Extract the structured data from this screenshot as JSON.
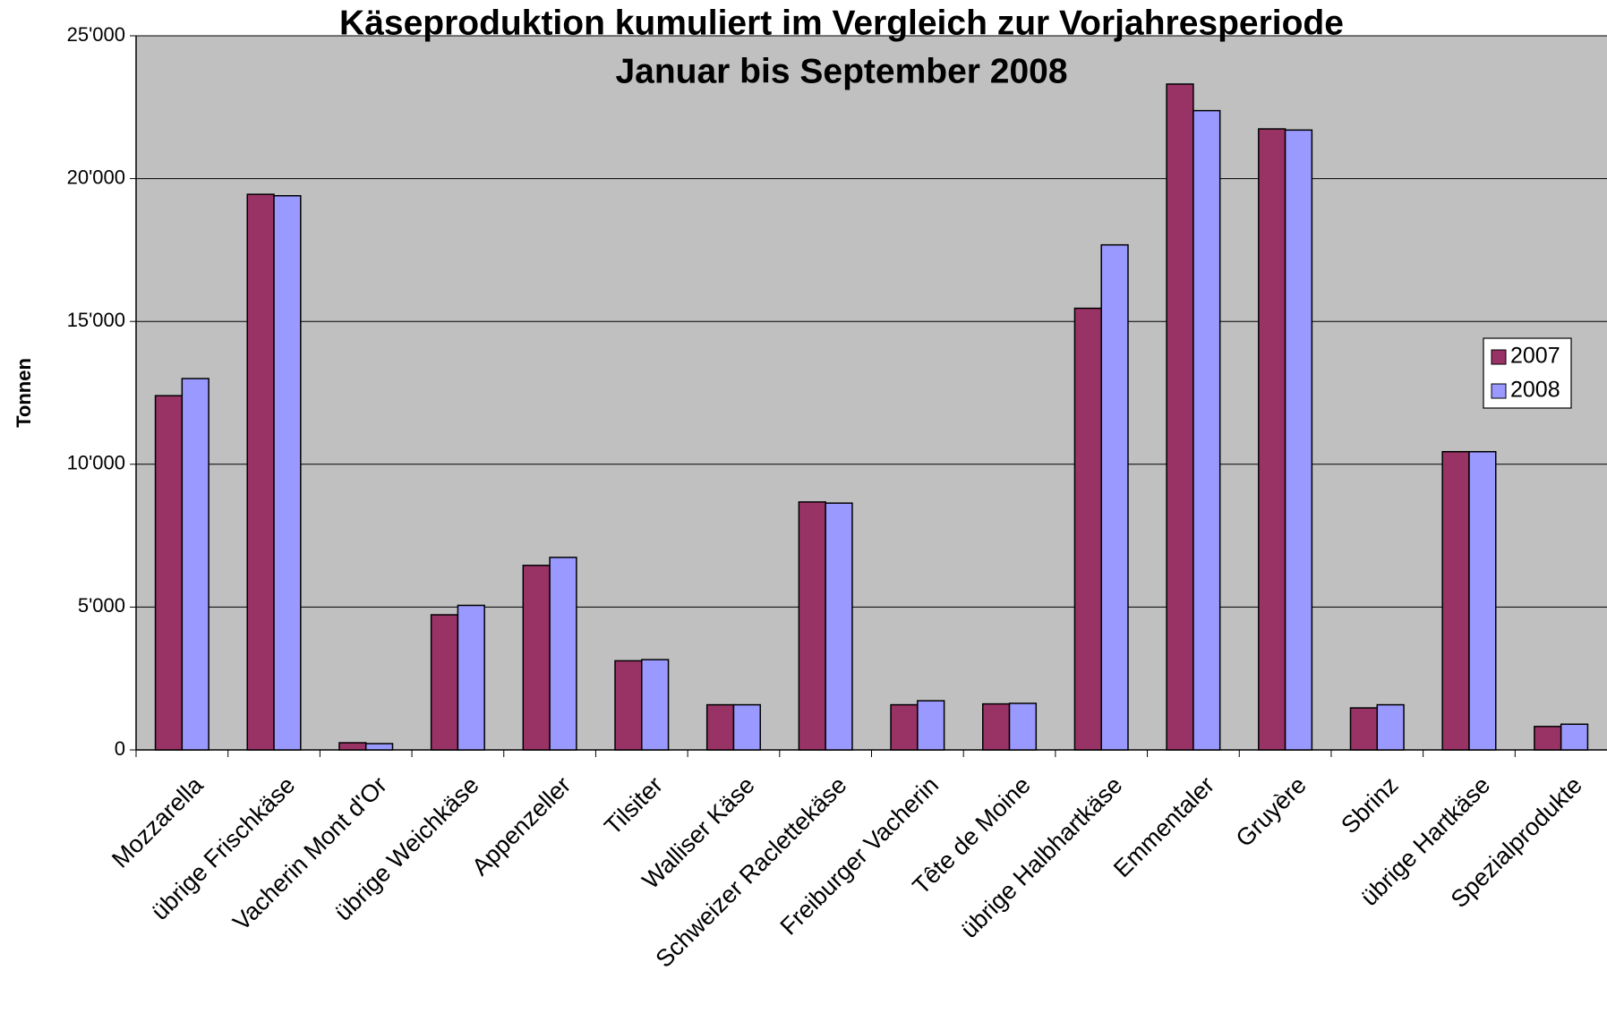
{
  "chart_data": {
    "type": "bar",
    "title": "Käseproduktion kumuliert im Vergleich zur Vorjahresperiode",
    "subtitle": "Januar bis September 2008",
    "y_label": "Tonnen",
    "categories": [
      "Mozzarella",
      "übrige Frischkäse",
      "Vacherin Mont d'Or",
      "übrige Weichkäse",
      "Appenzeller",
      "Tilsiter",
      "Walliser Käse",
      "Schweizer Raclettekäse",
      "Freiburger Vacherin",
      "Tête de Moine",
      "übrige Halbhartkäse",
      "Emmentaler",
      "Gruyère",
      "Sbrinz",
      "übrige Hartkäse",
      "Spezialprodukte"
    ],
    "series": [
      {
        "name": "2007",
        "color": "#993366",
        "values": [
          12400,
          19450,
          250,
          4730,
          6460,
          3120,
          1580,
          8680,
          1580,
          1610,
          15460,
          23310,
          21740,
          1470,
          10440,
          820
        ]
      },
      {
        "name": "2008",
        "color": "#9999ff",
        "values": [
          13000,
          19400,
          220,
          5060,
          6740,
          3160,
          1580,
          8640,
          1720,
          1630,
          17680,
          22380,
          21700,
          1580,
          10440,
          900
        ]
      }
    ],
    "ylim": [
      0,
      25000
    ],
    "yticks": [
      0,
      {
        "value": 5000,
        "label": "5'000"
      },
      {
        "value": 10000,
        "label": "10'000"
      },
      {
        "value": 15000,
        "label": "15'000"
      },
      {
        "value": 20000,
        "label": "20'000"
      },
      {
        "value": 25000,
        "label": "25'000"
      }
    ],
    "grid": true,
    "legend": "right"
  }
}
